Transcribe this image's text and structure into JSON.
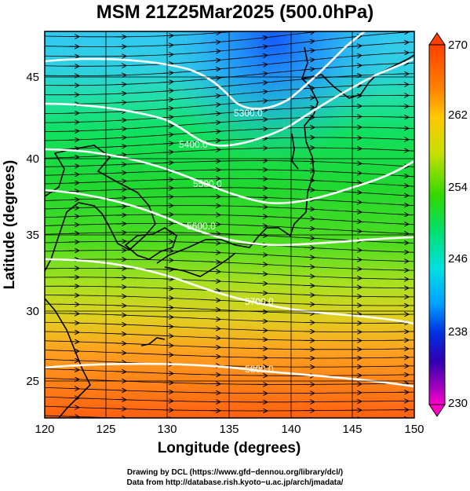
{
  "title": "MSM 21Z25Mar2025 (500.0hPa)",
  "map": {
    "lon_range": [
      120,
      150
    ],
    "lat_range": [
      22.5,
      47.5
    ],
    "x_ticks": [
      "120",
      "125",
      "130",
      "135",
      "140",
      "145",
      "150"
    ],
    "y_ticks": [
      "25",
      "30",
      "35",
      "40",
      "45"
    ],
    "xlabel": "Longitude (degrees)",
    "ylabel": "Latitude  (degrees)",
    "field": "temperature-shaded",
    "streamlines": "wind",
    "contours": [
      {
        "label": "5500.0"
      },
      {
        "label": "5600.0"
      },
      {
        "label": "5700.0"
      },
      {
        "label": "5800.0"
      },
      {
        "label": "5400.0"
      },
      {
        "label": "5300.0"
      }
    ]
  },
  "colorbar": {
    "ticks": [
      "270",
      "262",
      "254",
      "246",
      "238",
      "230"
    ],
    "min": 230,
    "max": 270,
    "colors": [
      "#ff00c8",
      "#c800c8",
      "#6400c8",
      "#0000c8",
      "#0050ff",
      "#00a0ff",
      "#00e0e0",
      "#00ffa0",
      "#00e060",
      "#00c800",
      "#60e000",
      "#c8e000",
      "#ffc800",
      "#ff8000",
      "#ff4000"
    ]
  },
  "credits": {
    "line1": "Drawing by DCL (https://www.gfd−dennou.org/library/dcl/)",
    "line2": "Data from http://database.rish.kyoto−u.ac.jp/arch/jmadata/"
  }
}
